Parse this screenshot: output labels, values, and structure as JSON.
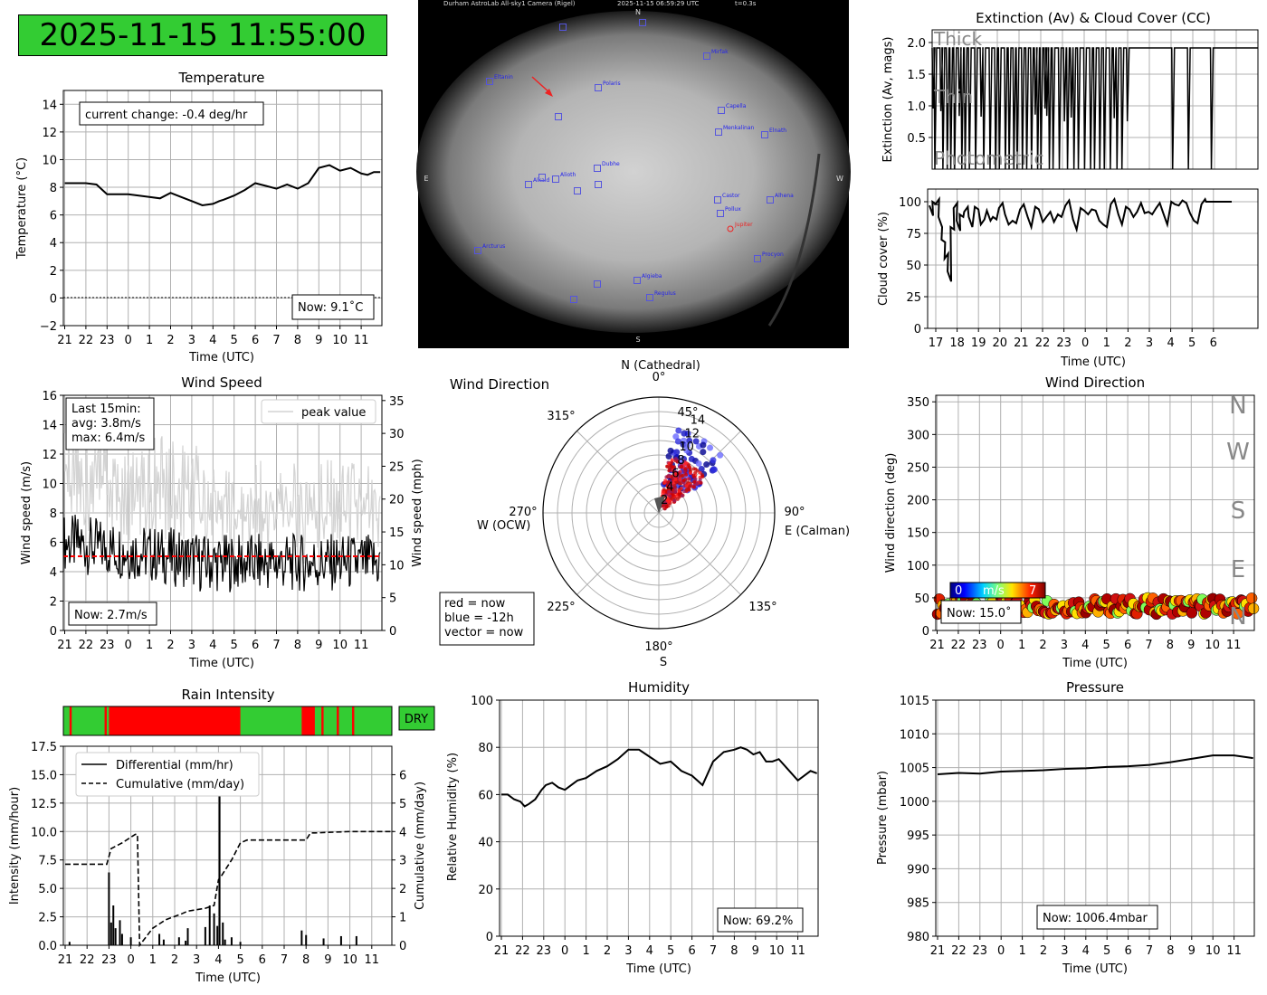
{
  "timestamp": "2025-11-15 11:55:00",
  "colors": {
    "clock_bg": "#33cc33",
    "rain": "#ff0000",
    "dry": "#33cc33",
    "peak": "#d3d3d3",
    "mean": "#ff0000"
  },
  "time_ticks": [
    "21",
    "22",
    "23",
    "0",
    "1",
    "2",
    "3",
    "4",
    "5",
    "6",
    "7",
    "8",
    "9",
    "10",
    "11"
  ],
  "camera": {
    "header": "Durham AstroLab All-sky1 Camera (Rigel)",
    "header_time": "2025-11-15 06:59:29 UTC",
    "header_exp": "t=0.3s",
    "compass": {
      "n": "N",
      "s": "S",
      "e": "E",
      "w": "W"
    },
    "stars": [
      "Mirfak",
      "Eltanin",
      "Polaris",
      "Capella",
      "Menkalinan",
      "Elnath",
      "Dubhe",
      "Alioth",
      "Alkaid",
      "Castor",
      "Pollux",
      "Alhena",
      "Jupiter",
      "Procyon",
      "Arcturus",
      "Algieba",
      "Regulus"
    ]
  },
  "chart_data": [
    {
      "id": "temperature",
      "type": "line",
      "title": "Temperature",
      "xlabel": "Time (UTC)",
      "ylabel": "Temperature (°C)",
      "ylim": [
        -2,
        15
      ],
      "yticks": [
        "−2",
        "0",
        "2",
        "4",
        "6",
        "8",
        "10",
        "12",
        "14"
      ],
      "x": [
        0,
        0.5,
        1,
        1.5,
        2,
        2.3,
        2.5,
        3,
        3.5,
        4,
        4.5,
        5,
        5.5,
        6,
        6.5,
        7,
        7.3,
        7.5,
        8,
        8.5,
        9,
        9.5,
        10,
        10.5,
        11,
        11.5,
        12,
        12.5,
        13,
        13.5,
        14,
        14.3,
        14.6,
        14.9
      ],
      "values": [
        8.3,
        8.3,
        8.3,
        8.2,
        7.5,
        7.5,
        7.5,
        7.5,
        7.4,
        7.3,
        7.2,
        7.6,
        7.3,
        7.0,
        6.7,
        6.8,
        7.0,
        7.1,
        7.4,
        7.8,
        8.3,
        8.1,
        7.9,
        8.2,
        7.9,
        8.3,
        9.4,
        9.6,
        9.2,
        9.4,
        9.0,
        8.9,
        9.1,
        9.1
      ],
      "zero_line": 0,
      "annotation": "current change: -0.4 deg/hr",
      "now_label": "Now: 9.1˚C"
    },
    {
      "id": "extinction",
      "type": "line",
      "title": "Extinction (Av) & Cloud Cover (CC)",
      "ylabel": "Extinction (Av, mags)",
      "ylim": [
        0,
        2.2
      ],
      "yticks": [
        "0.5",
        "1.0",
        "1.5",
        "2.0"
      ],
      "levels": [
        "Thick",
        "Thin",
        "Photometric"
      ]
    },
    {
      "id": "cloud_cover",
      "type": "line",
      "xlabel": "Time (UTC)",
      "ylabel": "Cloud cover (%)",
      "ylim": [
        0,
        110
      ],
      "yticks": [
        "0",
        "25",
        "50",
        "75",
        "100"
      ],
      "xticks": [
        "17",
        "18",
        "19",
        "20",
        "21",
        "22",
        "23",
        "0",
        "1",
        "2",
        "3",
        "4",
        "5",
        "6"
      ],
      "x": [
        0,
        0.2,
        0.4,
        0.6,
        0.8,
        1.0,
        1.2,
        1.4,
        1.6,
        1.8,
        2.0,
        2.3,
        2.6,
        3.0,
        3.4,
        3.8,
        4.2,
        4.6,
        5,
        5.5,
        6,
        6.5,
        7,
        7.5,
        8,
        8.5,
        9,
        9.5,
        10,
        10.5,
        11,
        11.5,
        12,
        12.5,
        13,
        13.5,
        14,
        14.5,
        15,
        15.5,
        16,
        16.5,
        17,
        17.5,
        18,
        18.3,
        18.6,
        19,
        19.5,
        20
      ],
      "values": [
        97,
        100,
        98,
        88,
        70,
        55,
        45,
        80,
        95,
        85,
        90,
        92,
        88,
        96,
        82,
        93,
        88,
        95,
        90,
        85,
        94,
        88,
        96,
        84,
        92,
        90,
        97,
        86,
        95,
        90,
        93,
        82,
        98,
        90,
        96,
        88,
        99,
        92,
        95,
        90,
        100,
        97,
        99,
        85,
        98,
        100,
        100,
        100,
        100,
        100
      ]
    },
    {
      "id": "wind_speed",
      "type": "line",
      "title": "Wind Speed",
      "xlabel": "Time (UTC)",
      "ylabel": "Wind speed (m/s)",
      "ylabel_right": "Wind speed (mph)",
      "ylim": [
        0,
        16
      ],
      "yticks": [
        "0",
        "2",
        "4",
        "6",
        "8",
        "10",
        "12",
        "14",
        "16"
      ],
      "yticks_right": [
        "0",
        "5",
        "10",
        "15",
        "20",
        "25",
        "30",
        "35"
      ],
      "legend": "peak value",
      "summary": [
        "Last 15min:",
        "avg: 3.8m/s",
        "max: 6.4m/s"
      ],
      "now_label": "Now: 2.7m/s",
      "mean_value": 5.0
    },
    {
      "id": "wind_polar",
      "type": "scatter",
      "title": "Wind Direction",
      "north_label": "N (Cathedral)",
      "south_label": "S",
      "east_label": "E (Calman)",
      "west_label": "W (OCW)",
      "angle_labels": [
        "0°",
        "45°",
        "90°",
        "135°",
        "180°",
        "225°",
        "270°",
        "315°"
      ],
      "radial_ticks": [
        "2",
        "4",
        "6",
        "8",
        "10",
        "12",
        "14"
      ],
      "rmax": 16,
      "legend": [
        "red = now",
        "blue = -12h",
        "vector = now"
      ]
    },
    {
      "id": "wind_direction",
      "type": "scatter",
      "title": "Wind Direction",
      "xlabel": "Time (UTC)",
      "ylabel": "Wind direction (deg)",
      "ylim": [
        0,
        360
      ],
      "yticks": [
        "0",
        "50",
        "100",
        "150",
        "200",
        "250",
        "300",
        "350"
      ],
      "compass_labels": [
        "N",
        "W",
        "S",
        "E",
        "N"
      ],
      "colorbar": {
        "min": "0",
        "unit": "m/s",
        "max": "7"
      },
      "now_label": "Now: 15.0˚"
    },
    {
      "id": "rain",
      "type": "line",
      "title": "Rain Intensity",
      "xlabel": "Time (UTC)",
      "ylabel": "Intensity (mm/hour)",
      "ylabel_right": "Cumulative (mm/day)",
      "ylim": [
        0,
        17.5
      ],
      "yticks": [
        "0.0",
        "2.5",
        "5.0",
        "7.5",
        "10.0",
        "12.5",
        "15.0",
        "17.5"
      ],
      "yticks_right": [
        "0",
        "1",
        "2",
        "3",
        "4",
        "5",
        "6"
      ],
      "legend": [
        "Differential (mm/hr)",
        "Cumulative (mm/day)"
      ],
      "status": "DRY",
      "rain_periods": [
        [
          0.2,
          0.3
        ],
        [
          1.8,
          1.9
        ],
        [
          2.0,
          8.0
        ],
        [
          5.4,
          5.5
        ],
        [
          5.6,
          5.7
        ],
        [
          10.8,
          11.4
        ],
        [
          11.7,
          11.8
        ],
        [
          12.4,
          12.5
        ],
        [
          13.1,
          13.2
        ]
      ],
      "cumulative_x": [
        0,
        1,
        1.9,
        2.1,
        2.6,
        3.2,
        3.3,
        3.4,
        4,
        4.6,
        5.3,
        5.6,
        6.4,
        6.8,
        7.0,
        7.1,
        7.6,
        8.0,
        8.3,
        9.0,
        10.0,
        11.0,
        11.2,
        11.4,
        12,
        13,
        14,
        15
      ],
      "cumulative": [
        2.85,
        2.85,
        2.85,
        3.4,
        3.6,
        3.9,
        3.9,
        0.0,
        0.6,
        0.9,
        1.1,
        1.2,
        1.3,
        1.4,
        2.3,
        2.4,
        3.0,
        3.6,
        3.7,
        3.7,
        3.7,
        3.7,
        3.95,
        3.95,
        3.97,
        4.0,
        4.0,
        4.0
      ],
      "spikes": [
        [
          0.2,
          0.3
        ],
        [
          2.0,
          6.4
        ],
        [
          2.1,
          2.0
        ],
        [
          2.2,
          3.5
        ],
        [
          2.3,
          1.5
        ],
        [
          2.5,
          2.2
        ],
        [
          2.6,
          1.0
        ],
        [
          3.0,
          0.7
        ],
        [
          4.3,
          1.0
        ],
        [
          4.5,
          0.5
        ],
        [
          5.2,
          0.7
        ],
        [
          5.5,
          0.4
        ],
        [
          5.6,
          1.5
        ],
        [
          6.4,
          1.6
        ],
        [
          6.6,
          3.5
        ],
        [
          6.8,
          2.8
        ],
        [
          6.95,
          1.7
        ],
        [
          7.05,
          13.8
        ],
        [
          7.2,
          2.0
        ],
        [
          7.3,
          0.5
        ],
        [
          7.6,
          0.7
        ],
        [
          8.0,
          0.3
        ],
        [
          10.8,
          1.3
        ],
        [
          11.0,
          0.9
        ],
        [
          11.8,
          0.6
        ],
        [
          12.6,
          0.8
        ],
        [
          13.3,
          0.8
        ]
      ],
      "now_label": ""
    },
    {
      "id": "humidity",
      "type": "line",
      "title": "Humidity",
      "xlabel": "Time (UTC)",
      "ylabel": "Relative Humidity (%)",
      "ylim": [
        0,
        100
      ],
      "yticks": [
        "0",
        "20",
        "40",
        "60",
        "80",
        "100"
      ],
      "x": [
        0,
        0.3,
        0.6,
        0.9,
        1.1,
        1.3,
        1.6,
        1.9,
        2.1,
        2.4,
        2.7,
        3.0,
        3.3,
        3.6,
        4.0,
        4.5,
        5.0,
        5.5,
        6.0,
        6.5,
        7.0,
        7.5,
        8.0,
        8.5,
        9.0,
        9.5,
        10.0,
        10.5,
        11.0,
        11.3,
        11.6,
        11.9,
        12.2,
        12.5,
        12.8,
        13.1,
        13.4,
        13.7,
        14.0,
        14.3,
        14.6,
        14.9
      ],
      "values": [
        60,
        60,
        58,
        57,
        55,
        56,
        58,
        62,
        64,
        65,
        63,
        62,
        64,
        66,
        67,
        70,
        72,
        75,
        79,
        79,
        76,
        73,
        74,
        70,
        68,
        64,
        74,
        78,
        79,
        80,
        79,
        77,
        78,
        74,
        74,
        75,
        72,
        69,
        66,
        68,
        70,
        69
      ],
      "now_label": "Now: 69.2%"
    },
    {
      "id": "pressure",
      "type": "line",
      "title": "Pressure",
      "xlabel": "Time (UTC)",
      "ylabel": "Pressure (mbar)",
      "ylim": [
        980,
        1015
      ],
      "yticks": [
        "980",
        "985",
        "990",
        "995",
        "1000",
        "1005",
        "1010",
        "1015"
      ],
      "x": [
        0,
        1,
        2,
        3,
        4,
        5,
        6,
        7,
        8,
        9,
        10,
        11,
        12,
        13,
        14,
        14.9
      ],
      "values": [
        1004.0,
        1004.2,
        1004.1,
        1004.4,
        1004.5,
        1004.6,
        1004.8,
        1004.9,
        1005.1,
        1005.2,
        1005.4,
        1005.8,
        1006.3,
        1006.8,
        1006.8,
        1006.4
      ],
      "now_label": "Now: 1006.4mbar"
    }
  ]
}
